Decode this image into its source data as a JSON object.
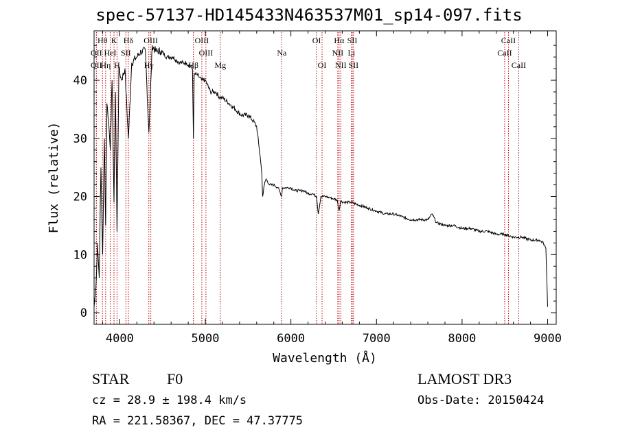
{
  "chart_data": {
    "type": "line",
    "title": "spec-57137-HD145433N463537M01_sp14-097.fits",
    "xlabel": "Wavelength (Å)",
    "ylabel": "Flux (relative)",
    "xlim": [
      3700,
      9100
    ],
    "ylim": [
      -2,
      48.5
    ],
    "xticks": [
      4000,
      5000,
      6000,
      7000,
      8000,
      9000
    ],
    "yticks": [
      0,
      10,
      20,
      30,
      40
    ],
    "series": [
      {
        "name": "spectrum",
        "x": [
          3700,
          3720,
          3740,
          3760,
          3780,
          3800,
          3820,
          3835,
          3850,
          3870,
          3889,
          3910,
          3933,
          3950,
          3968,
          3990,
          4020,
          4060,
          4101,
          4140,
          4200,
          4250,
          4300,
          4340,
          4380,
          4420,
          4480,
          4550,
          4620,
          4700,
          4780,
          4850,
          4861,
          4870,
          4900,
          4960,
          5000,
          5060,
          5120,
          5172,
          5200,
          5280,
          5350,
          5420,
          5500,
          5560,
          5600,
          5640,
          5660,
          5670,
          5690,
          5710,
          5750,
          5800,
          5850,
          5893,
          5900,
          5950,
          6000,
          6050,
          6100,
          6150,
          6200,
          6250,
          6300,
          6320,
          6350,
          6400,
          6450,
          6500,
          6540,
          6563,
          6580,
          6620,
          6700,
          6800,
          6900,
          7000,
          7100,
          7200,
          7300,
          7400,
          7500,
          7600,
          7650,
          7700,
          7800,
          7900,
          8000,
          8100,
          8200,
          8300,
          8400,
          8500,
          8600,
          8700,
          8800,
          8900,
          8950,
          8980,
          9000
        ],
        "values": [
          1,
          4,
          12,
          6,
          25,
          10,
          30,
          15,
          36,
          33,
          28,
          40,
          19,
          38,
          14,
          42,
          40,
          42,
          30,
          43,
          44,
          45,
          45,
          31,
          46,
          45,
          45,
          44,
          44,
          43,
          43,
          42,
          30,
          41,
          41,
          40,
          40,
          38,
          38,
          37,
          37,
          36,
          35,
          34,
          34,
          33,
          32,
          27,
          24,
          20,
          22,
          23,
          22,
          22,
          21.5,
          20,
          21.5,
          21.5,
          21.5,
          21,
          21,
          21,
          20.5,
          20.5,
          20,
          17,
          20,
          20,
          19.8,
          19.6,
          19.4,
          17.5,
          19.2,
          19,
          19,
          18.5,
          18,
          17.5,
          17,
          17,
          16.5,
          16,
          16,
          16,
          17,
          15.5,
          15,
          15,
          14.5,
          14.5,
          14,
          14,
          13.5,
          13.5,
          13,
          13,
          12.5,
          12.5,
          12,
          11,
          1
        ]
      }
    ],
    "lines": [
      {
        "label": "Hθ",
        "x": 3798,
        "row": 0
      },
      {
        "label": "OII",
        "x": 3727,
        "row": 1
      },
      {
        "label": "OII",
        "x": 3727,
        "row": 2
      },
      {
        "label": "Hη",
        "x": 3835,
        "row": 2
      },
      {
        "label": "HeI",
        "x": 3889,
        "row": 1
      },
      {
        "label": "K",
        "x": 3933,
        "row": 0
      },
      {
        "label": "H",
        "x": 3968,
        "row": 2
      },
      {
        "label": "SII",
        "x": 4072,
        "row": 1
      },
      {
        "label": "Hδ",
        "x": 4101,
        "row": 0
      },
      {
        "label": "OIII",
        "x": 4363,
        "row": 0
      },
      {
        "label": "Hγ",
        "x": 4340,
        "row": 2
      },
      {
        "label": "Hβ",
        "x": 4861,
        "row": 2
      },
      {
        "label": "OIII",
        "x": 4959,
        "row": 0
      },
      {
        "label": "OIII",
        "x": 5007,
        "row": 1
      },
      {
        "label": "Mg",
        "x": 5175,
        "row": 2
      },
      {
        "label": "Na",
        "x": 5893,
        "row": 1
      },
      {
        "label": "OI",
        "x": 6300,
        "row": 0
      },
      {
        "label": "OI",
        "x": 6364,
        "row": 2
      },
      {
        "label": "Hα",
        "x": 6563,
        "row": 0
      },
      {
        "label": "NII",
        "x": 6548,
        "row": 1
      },
      {
        "label": "NII",
        "x": 6583,
        "row": 2
      },
      {
        "label": "SII",
        "x": 6717,
        "row": 0
      },
      {
        "label": "Li",
        "x": 6708,
        "row": 1
      },
      {
        "label": "SII",
        "x": 6731,
        "row": 2
      },
      {
        "label": "CaII",
        "x": 8542,
        "row": 0
      },
      {
        "label": "CaII",
        "x": 8498,
        "row": 1
      },
      {
        "label": "CaII",
        "x": 8662,
        "row": 2
      }
    ]
  },
  "info": {
    "class": "STAR",
    "subclass": "F0",
    "cz": "cz = 28.9 ± 198.4 km/s",
    "radec": "RA = 221.58367, DEC =  47.37775",
    "survey": "LAMOST DR3",
    "obsdate": "Obs-Date: 20150424"
  },
  "colors": {
    "line_marker": "#c00000",
    "spectrum": "#000000"
  }
}
